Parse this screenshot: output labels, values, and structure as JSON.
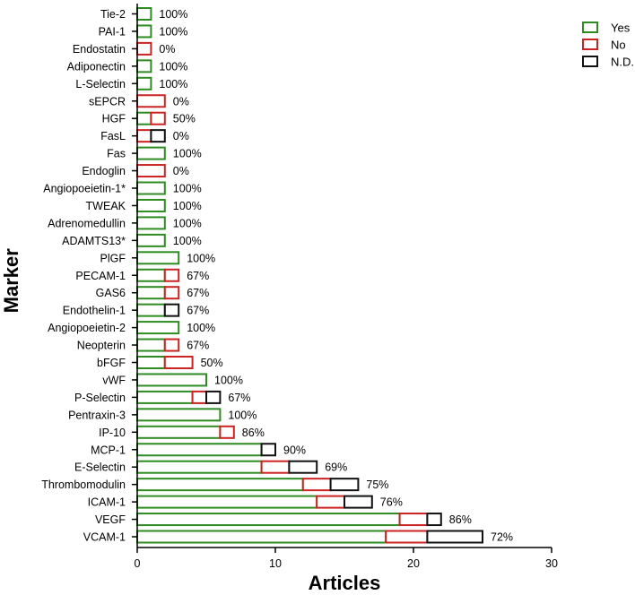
{
  "chart_data": {
    "type": "bar",
    "orientation": "horizontal",
    "stacked": true,
    "title": "",
    "xlabel": "Articles",
    "ylabel": "Marker",
    "xlim": [
      0,
      30
    ],
    "xticks": [
      "0",
      "10",
      "20",
      "30"
    ],
    "grid": false,
    "legend": "top-right",
    "colors": {
      "yes": "#2e8b22",
      "no": "#cc2222",
      "nd": "#111111"
    },
    "series": [
      {
        "name": "Yes",
        "color": "#2e8b22"
      },
      {
        "name": "No",
        "color": "#cc2222"
      },
      {
        "name": "N.D.",
        "color": "#111111"
      }
    ],
    "categories": [
      "Tie-2",
      "PAI-1",
      "Endostatin",
      "Adiponectin",
      "L-Selectin",
      "sEPCR",
      "HGF",
      "FasL",
      "Fas",
      "Endoglin",
      "Angiopoeietin-1*",
      "TWEAK",
      "Adrenomedullin",
      "ADAMTS13*",
      "PlGF",
      "PECAM-1",
      "GAS6",
      "Endothelin-1",
      "Angiopoeietin-2",
      "Neopterin",
      "bFGF",
      "vWF",
      "P-Selectin",
      "Pentraxin-3",
      "IP-10",
      "MCP-1",
      "E-Selectin",
      "Thrombomodulin",
      "ICAM-1",
      "VEGF",
      "VCAM-1"
    ],
    "yes": [
      1,
      1,
      0,
      1,
      1,
      0,
      1,
      0,
      2,
      0,
      2,
      2,
      2,
      2,
      3,
      2,
      2,
      2,
      3,
      2,
      2,
      5,
      4,
      6,
      6,
      9,
      9,
      12,
      13,
      19,
      18
    ],
    "no": [
      0,
      0,
      1,
      0,
      0,
      2,
      1,
      1,
      0,
      2,
      0,
      0,
      0,
      0,
      0,
      1,
      1,
      0,
      0,
      1,
      2,
      0,
      1,
      0,
      1,
      0,
      2,
      2,
      2,
      2,
      3
    ],
    "nd": [
      0,
      0,
      0,
      0,
      0,
      0,
      0,
      1,
      0,
      0,
      0,
      0,
      0,
      0,
      0,
      0,
      0,
      1,
      0,
      0,
      0,
      0,
      1,
      0,
      0,
      1,
      2,
      2,
      2,
      1,
      4
    ],
    "percent_labels": [
      "100%",
      "100%",
      "0%",
      "100%",
      "100%",
      "0%",
      "50%",
      "0%",
      "100%",
      "0%",
      "100%",
      "100%",
      "100%",
      "100%",
      "100%",
      "67%",
      "67%",
      "67%",
      "100%",
      "67%",
      "50%",
      "100%",
      "67%",
      "100%",
      "86%",
      "90%",
      "69%",
      "75%",
      "76%",
      "86%",
      "72%"
    ]
  }
}
